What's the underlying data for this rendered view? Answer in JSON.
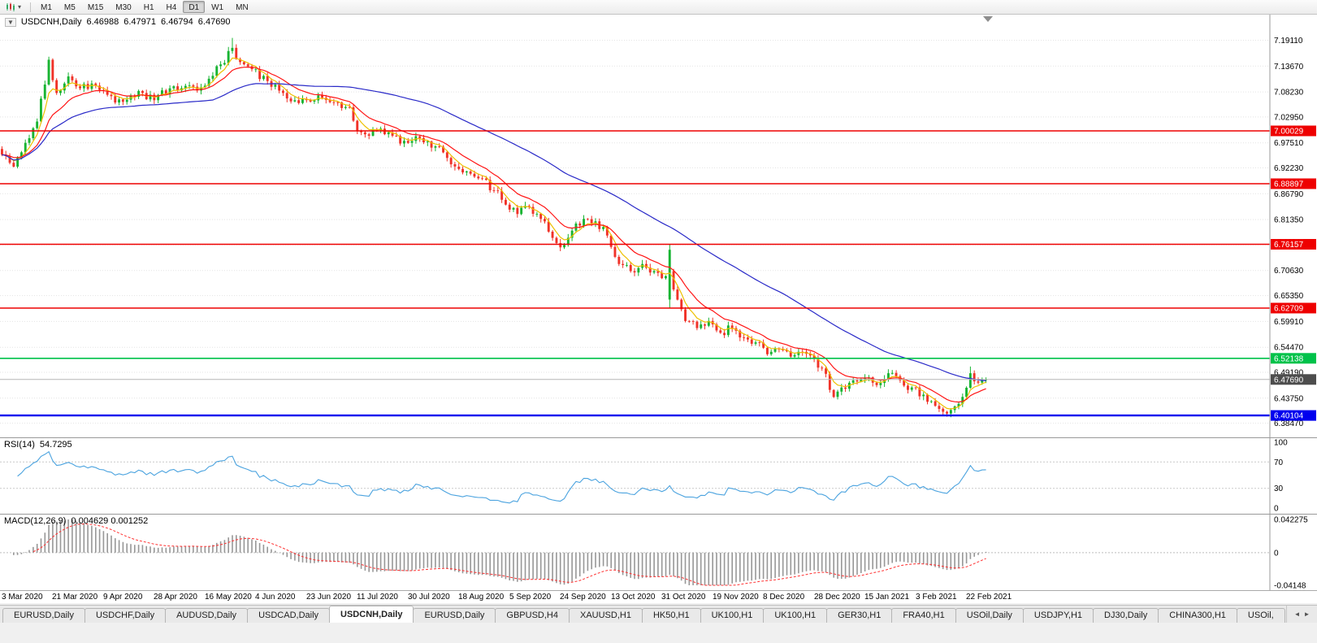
{
  "toolbar": {
    "chart_type_icon": "candlestick-chart-icon",
    "dropdown_glyph": "▾",
    "timeframes": [
      {
        "label": "M1",
        "active": false
      },
      {
        "label": "M5",
        "active": false
      },
      {
        "label": "M15",
        "active": false
      },
      {
        "label": "M30",
        "active": false
      },
      {
        "label": "H1",
        "active": false
      },
      {
        "label": "H4",
        "active": false
      },
      {
        "label": "D1",
        "active": true
      },
      {
        "label": "W1",
        "active": false
      },
      {
        "label": "MN",
        "active": false
      }
    ]
  },
  "chart": {
    "header": {
      "collapse_glyph": "▼",
      "title": "USDCNH,Daily",
      "open": "6.46988",
      "high": "6.47971",
      "low": "6.46794",
      "close": "6.47690"
    }
  },
  "chart_data": {
    "type": "candlestick",
    "symbol": "USDCNH",
    "timeframe": "Daily",
    "ohlc": {
      "open": 6.46988,
      "high": 6.47971,
      "low": 6.46794,
      "close": 6.4769
    },
    "y_axis_ticks": [
      "7.19110",
      "7.13670",
      "7.08230",
      "7.02950",
      "6.97510",
      "6.92230",
      "6.86790",
      "6.81350",
      "6.76070",
      "6.70630",
      "6.65350",
      "6.59910",
      "6.54470",
      "6.49190",
      "6.43750",
      "6.38470"
    ],
    "y_range": [
      6.355,
      7.245
    ],
    "x_labels": [
      "3 Mar 2020",
      "21 Mar 2020",
      "9 Apr 2020",
      "28 Apr 2020",
      "16 May 2020",
      "4 Jun 2020",
      "23 Jun 2020",
      "11 Jul 2020",
      "30 Jul 2020",
      "18 Aug 2020",
      "5 Sep 2020",
      "24 Sep 2020",
      "13 Oct 2020",
      "31 Oct 2020",
      "19 Nov 2020",
      "8 Dec 2020",
      "28 Dec 2020",
      "15 Jan 2021",
      "3 Feb 2021",
      "22 Feb 2021"
    ],
    "candles_per_label": 13,
    "num_candles": 253,
    "price_path": [
      [
        0,
        6.95
      ],
      [
        3,
        6.925
      ],
      [
        6,
        6.975
      ],
      [
        9,
        7.02
      ],
      [
        12,
        7.15
      ],
      [
        14,
        7.08
      ],
      [
        17,
        7.115
      ],
      [
        20,
        7.09
      ],
      [
        23,
        7.1
      ],
      [
        26,
        7.085
      ],
      [
        29,
        7.06
      ],
      [
        33,
        7.075
      ],
      [
        36,
        7.08
      ],
      [
        39,
        7.065
      ],
      [
        43,
        7.09
      ],
      [
        47,
        7.095
      ],
      [
        50,
        7.085
      ],
      [
        53,
        7.11
      ],
      [
        56,
        7.14
      ],
      [
        59,
        7.175
      ],
      [
        61,
        7.145
      ],
      [
        64,
        7.13
      ],
      [
        68,
        7.105
      ],
      [
        72,
        7.08
      ],
      [
        75,
        7.065
      ],
      [
        78,
        7.065
      ],
      [
        82,
        7.07
      ],
      [
        86,
        7.06
      ],
      [
        89,
        7.05
      ],
      [
        91,
        7.0
      ],
      [
        94,
        6.99
      ],
      [
        97,
        7.005
      ],
      [
        100,
        6.99
      ],
      [
        104,
        6.975
      ],
      [
        107,
        6.985
      ],
      [
        110,
        6.965
      ],
      [
        113,
        6.955
      ],
      [
        117,
        6.92
      ],
      [
        120,
        6.91
      ],
      [
        123,
        6.9
      ],
      [
        126,
        6.875
      ],
      [
        129,
        6.845
      ],
      [
        132,
        6.825
      ],
      [
        135,
        6.84
      ],
      [
        138,
        6.815
      ],
      [
        141,
        6.775
      ],
      [
        143,
        6.755
      ],
      [
        146,
        6.79
      ],
      [
        149,
        6.815
      ],
      [
        152,
        6.81
      ],
      [
        155,
        6.78
      ],
      [
        158,
        6.72
      ],
      [
        161,
        6.705
      ],
      [
        164,
        6.72
      ],
      [
        167,
        6.705
      ],
      [
        169,
        6.69
      ],
      [
        171,
        6.705
      ],
      [
        173,
        6.645
      ],
      [
        175,
        6.6
      ],
      [
        178,
        6.585
      ],
      [
        181,
        6.6
      ],
      [
        184,
        6.575
      ],
      [
        187,
        6.585
      ],
      [
        190,
        6.565
      ],
      [
        193,
        6.555
      ],
      [
        196,
        6.53
      ],
      [
        199,
        6.54
      ],
      [
        202,
        6.525
      ],
      [
        205,
        6.535
      ],
      [
        208,
        6.52
      ],
      [
        210,
        6.5
      ],
      [
        213,
        6.44
      ],
      [
        215,
        6.46
      ],
      [
        218,
        6.475
      ],
      [
        221,
        6.48
      ],
      [
        224,
        6.465
      ],
      [
        227,
        6.49
      ],
      [
        230,
        6.475
      ],
      [
        232,
        6.455
      ],
      [
        234,
        6.46
      ],
      [
        237,
        6.43
      ],
      [
        240,
        6.415
      ],
      [
        242,
        6.405
      ],
      [
        244,
        6.42
      ],
      [
        246,
        6.44
      ],
      [
        248,
        6.49
      ],
      [
        250,
        6.47
      ],
      [
        252,
        6.4769
      ]
    ],
    "special_candles": [
      {
        "index": 59,
        "high": 7.196
      },
      {
        "index": 171,
        "open": 6.645,
        "close": 6.75,
        "high": 6.761,
        "low": 6.628
      },
      {
        "index": 242,
        "low": 6.3985
      },
      {
        "index": 248,
        "high": 6.504
      }
    ],
    "horizontal_lines": [
      {
        "value": 7.00029,
        "label": "7.00029",
        "color": "#ee0000",
        "width": 1.6
      },
      {
        "value": 6.88897,
        "label": "6.88897",
        "color": "#ee0000",
        "width": 1.6
      },
      {
        "value": 6.76157,
        "label": "6.76157",
        "color": "#ee0000",
        "width": 1.6
      },
      {
        "value": 6.62709,
        "label": "6.62709",
        "color": "#ee0000",
        "width": 1.6
      },
      {
        "value": 6.52138,
        "label": "6.52138",
        "color": "#00c24a",
        "width": 1.6
      },
      {
        "value": 6.40104,
        "label": "6.40104",
        "color": "#0000ee",
        "width": 2.4
      }
    ],
    "current_price": {
      "value": 6.4769,
      "label": "6.47690",
      "badge_color": "#4d4d4d",
      "line_color": "#b5b5b5"
    },
    "moving_averages": [
      {
        "name": "ma-fast",
        "period": 5,
        "type": "ema",
        "color": "#eec000"
      },
      {
        "name": "ma-medium",
        "period": 13,
        "type": "ema",
        "color": "#ff1414"
      },
      {
        "name": "ma-slow",
        "period": 55,
        "type": "sma",
        "color": "#2a2ac8"
      }
    ],
    "candle_colors": {
      "up": "#18b432",
      "down": "#f03228"
    },
    "indicators": {
      "rsi": {
        "label": "RSI(14)",
        "value": "54.7295",
        "levels": [
          "100",
          "70",
          "30",
          "0"
        ],
        "line_color": "#4ba3df"
      },
      "macd": {
        "label": "MACD(12,26,9)",
        "values_text": "0.004629 0.001252",
        "axis_labels": [
          "0.042275",
          "0",
          "-0.04148"
        ],
        "histogram_color": "#979797",
        "signal_color": "#ff3030"
      }
    }
  },
  "tabs": {
    "items": [
      {
        "label": "EURUSD,Daily",
        "active": false
      },
      {
        "label": "USDCHF,Daily",
        "active": false
      },
      {
        "label": "AUDUSD,Daily",
        "active": false
      },
      {
        "label": "USDCAD,Daily",
        "active": false
      },
      {
        "label": "USDCNH,Daily",
        "active": true
      },
      {
        "label": "EURUSD,Daily",
        "active": false
      },
      {
        "label": "GBPUSD,H4",
        "active": false
      },
      {
        "label": "XAUUSD,H1",
        "active": false
      },
      {
        "label": "HK50,H1",
        "active": false
      },
      {
        "label": "UK100,H1",
        "active": false
      },
      {
        "label": "UK100,H1",
        "active": false
      },
      {
        "label": "GER30,H1",
        "active": false
      },
      {
        "label": "FRA40,H1",
        "active": false
      },
      {
        "label": "USOil,Daily",
        "active": false
      },
      {
        "label": "USDJPY,H1",
        "active": false
      },
      {
        "label": "DJ30,Daily",
        "active": false
      },
      {
        "label": "CHINA300,H1",
        "active": false
      },
      {
        "label": "USOil,",
        "active": false
      }
    ],
    "scroll_left_glyph": "◄",
    "scroll_right_glyph": "►"
  }
}
